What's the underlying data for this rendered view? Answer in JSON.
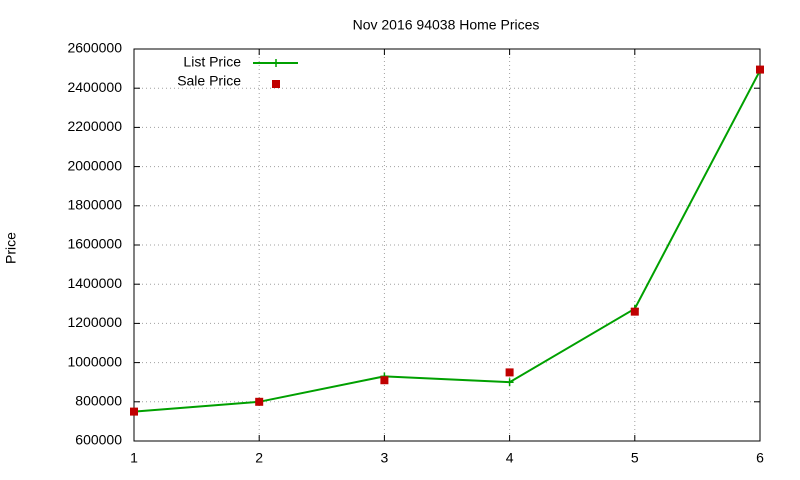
{
  "chart_data": {
    "type": "line",
    "title": "Nov 2016 94038 Home Prices",
    "y_label": "Price",
    "x": [
      1,
      2,
      3,
      4,
      5,
      6
    ],
    "series": [
      {
        "name": "List Price",
        "color": "#00a000",
        "style": "linespoints",
        "values": [
          750000,
          800000,
          930000,
          900000,
          1275000,
          2490000
        ]
      },
      {
        "name": "Sale Price",
        "color": "#c00000",
        "style": "points",
        "values": [
          750000,
          800000,
          910000,
          950000,
          1260000,
          2495000
        ]
      }
    ],
    "xlim": [
      1,
      6
    ],
    "xticks": [
      1,
      2,
      3,
      4,
      5,
      6
    ],
    "ylim": [
      600000,
      2600000
    ],
    "yticks": [
      600000,
      800000,
      1000000,
      1200000,
      1400000,
      1600000,
      1800000,
      2000000,
      2200000,
      2400000,
      2600000
    ],
    "grid": true,
    "legend": "top-left"
  }
}
